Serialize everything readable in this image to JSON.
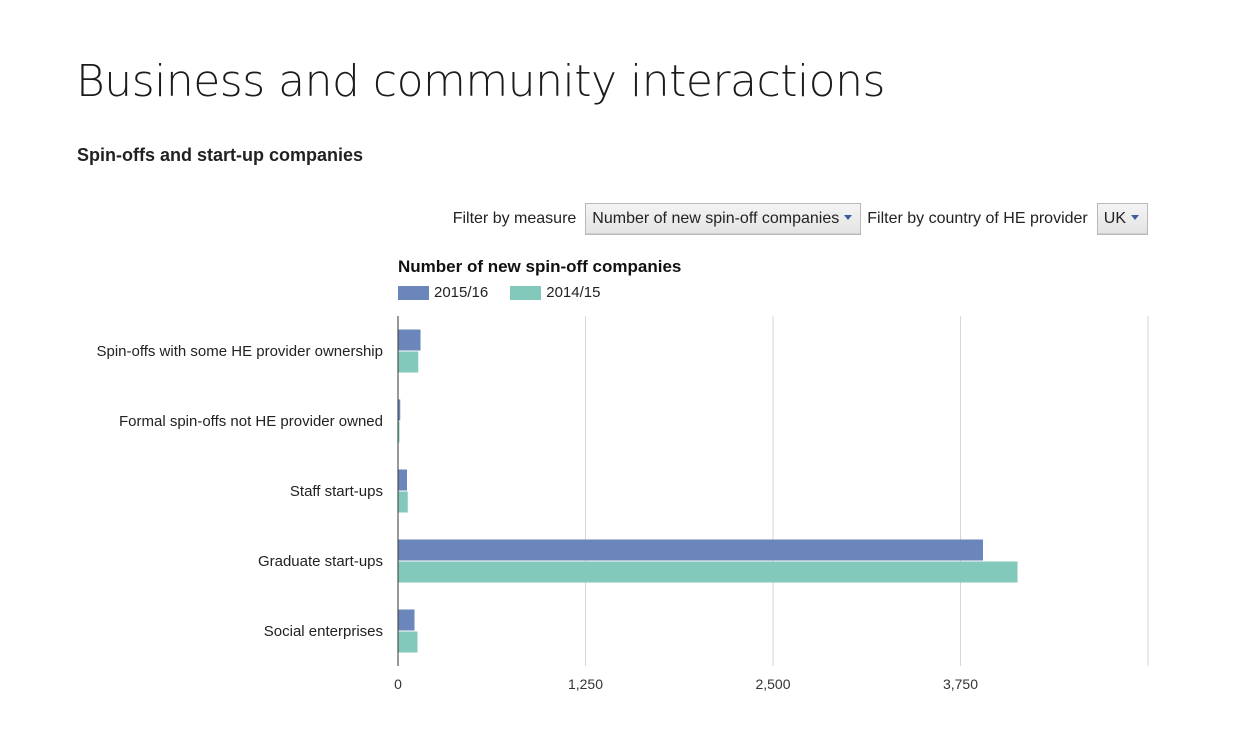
{
  "page": {
    "title": "Business and community interactions",
    "subtitle": "Spin-offs and start-up companies"
  },
  "filters": {
    "measure_label": "Filter by measure",
    "measure_value": "Number of new spin-off companies",
    "country_label": "Filter by country of HE provider",
    "country_value": "UK"
  },
  "colors": {
    "series_2015_16": "#6a86ba",
    "series_2014_15": "#82c8bb",
    "gridline": "#d6d6d6",
    "axis": "#333333"
  },
  "chart_data": {
    "type": "bar",
    "orientation": "horizontal",
    "title": "Number of new spin-off companies",
    "categories": [
      "Spin-offs with some HE provider ownership",
      "Formal spin-offs not HE provider owned",
      "Staff start-ups",
      "Graduate start-ups",
      "Social enterprises"
    ],
    "series": [
      {
        "name": "2015/16",
        "values": [
          150,
          15,
          60,
          3900,
          110
        ]
      },
      {
        "name": "2014/15",
        "values": [
          135,
          10,
          65,
          4130,
          130
        ]
      }
    ],
    "xlim": [
      0,
      5000
    ],
    "xticks": [
      "0",
      "1,250",
      "2,500",
      "3,750"
    ],
    "xtick_values": [
      0,
      1250,
      2500,
      3750
    ],
    "gridlines": [
      1250,
      2500,
      3750,
      5000
    ],
    "grid": true,
    "legend_position": "top-left"
  }
}
